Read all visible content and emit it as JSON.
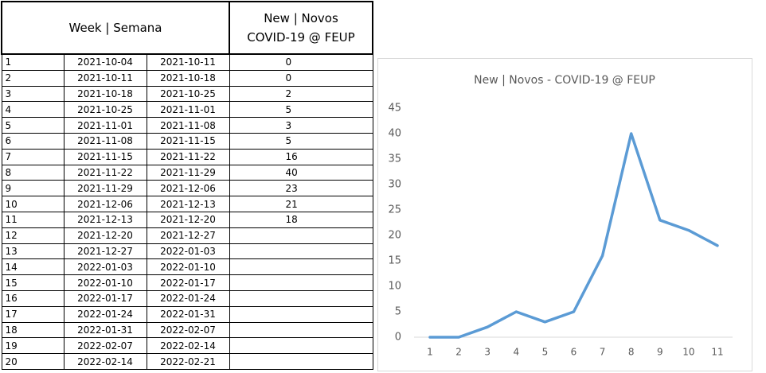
{
  "table": {
    "week_header": "Week | Semana",
    "new_header": [
      "New | Novos",
      "COVID-19 @ FEUP"
    ],
    "rows": [
      [
        1,
        "2021-10-04",
        "2021-10-11",
        0
      ],
      [
        2,
        "2021-10-11",
        "2021-10-18",
        0
      ],
      [
        3,
        "2021-10-18",
        "2021-10-25",
        2
      ],
      [
        4,
        "2021-10-25",
        "2021-11-01",
        5
      ],
      [
        5,
        "2021-11-01",
        "2021-11-08",
        3
      ],
      [
        6,
        "2021-11-08",
        "2021-11-15",
        5
      ],
      [
        7,
        "2021-11-15",
        "2021-11-22",
        16
      ],
      [
        8,
        "2021-11-22",
        "2021-11-29",
        40
      ],
      [
        9,
        "2021-11-29",
        "2021-12-06",
        23
      ],
      [
        10,
        "2021-12-06",
        "2021-12-13",
        21
      ],
      [
        11,
        "2021-12-13",
        "2021-12-20",
        18
      ],
      [
        12,
        "2021-12-20",
        "2021-12-27",
        null
      ],
      [
        13,
        "2021-12-27",
        "2022-01-03",
        null
      ],
      [
        14,
        "2022-01-03",
        "2022-01-10",
        null
      ],
      [
        15,
        "2022-01-10",
        "2022-01-17",
        null
      ],
      [
        16,
        "2022-01-17",
        "2022-01-24",
        null
      ],
      [
        17,
        "2022-01-24",
        "2022-01-31",
        null
      ],
      [
        18,
        "2022-01-31",
        "2022-02-07",
        null
      ],
      [
        19,
        "2022-02-07",
        "2022-02-14",
        null
      ],
      [
        20,
        "2022-02-14",
        "2022-02-21",
        null
      ]
    ]
  },
  "chart_data": {
    "type": "line",
    "title": "New | Novos - COVID-19 @ FEUP",
    "categories": [
      1,
      2,
      3,
      4,
      5,
      6,
      7,
      8,
      9,
      10,
      11
    ],
    "values": [
      0,
      0,
      2,
      5,
      3,
      5,
      16,
      40,
      23,
      21,
      18
    ],
    "color": "#5b9bd5",
    "ylim": [
      0,
      45
    ],
    "yticks": [
      0,
      5,
      10,
      15,
      20,
      25,
      30,
      35,
      40,
      45
    ],
    "grid": false
  }
}
